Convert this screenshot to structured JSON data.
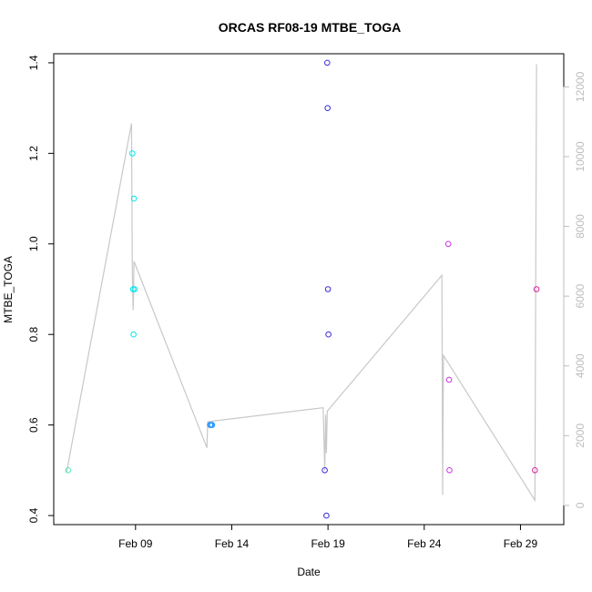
{
  "chart_data": {
    "type": "scatter",
    "title": "ORCAS RF08-19 MTBE_TOGA",
    "xlabel": "Date",
    "ylabel": "MTBE_TOGA",
    "x_ticks": [
      "Feb 09",
      "Feb 14",
      "Feb 19",
      "Feb 24",
      "Feb 29"
    ],
    "x_tick_dates": [
      "2016-02-09",
      "2016-02-14",
      "2016-02-19",
      "2016-02-24",
      "2016-02-29"
    ],
    "xlim": [
      "2016-02-04 18:00",
      "2016-03-02 06:00"
    ],
    "ylim": [
      0.38,
      1.42
    ],
    "y_ticks": [
      0.4,
      0.6,
      0.8,
      1.0,
      1.2,
      1.4
    ],
    "y_tick_labels": [
      "0.4",
      "0.6",
      "0.8",
      "1.0",
      "1.2",
      "1.4"
    ],
    "y2_ticks": [
      0,
      2000,
      4000,
      6000,
      8000,
      10000,
      12000
    ],
    "y2_tick_labels": [
      "0",
      "2000",
      "4000",
      "6000",
      "8000",
      "10000",
      "12000"
    ],
    "y2lim": [
      -550,
      12950
    ],
    "grid": false,
    "points": [
      {
        "x": "2016-02-05 12:00",
        "y": 0.5,
        "color": "#4de8b8"
      },
      {
        "x": "2016-02-08 20:00",
        "y": 1.2,
        "color": "#00e5ee"
      },
      {
        "x": "2016-02-08 21:00",
        "y": 0.9,
        "color": "#00e5ee"
      },
      {
        "x": "2016-02-08 21:30",
        "y": 0.8,
        "color": "#00e5ee"
      },
      {
        "x": "2016-02-08 22:00",
        "y": 1.1,
        "color": "#00e5ee"
      },
      {
        "x": "2016-02-08 23:00",
        "y": 0.9,
        "color": "#00e5ee"
      },
      {
        "x": "2016-02-12 21:00",
        "y": 0.6,
        "color": "#1e90ff"
      },
      {
        "x": "2016-02-12 22:00",
        "y": 0.6,
        "color": "#1e90ff"
      },
      {
        "x": "2016-02-12 23:30",
        "y": 0.6,
        "color": "#1e90ff"
      },
      {
        "x": "2016-02-18 20:00",
        "y": 0.5,
        "color": "#3a2cd8"
      },
      {
        "x": "2016-02-18 22:00",
        "y": 0.4,
        "color": "#3a2cd8"
      },
      {
        "x": "2016-02-18 23:00",
        "y": 1.4,
        "color": "#3a2cd8"
      },
      {
        "x": "2016-02-18 23:30",
        "y": 1.3,
        "color": "#3a2cd8"
      },
      {
        "x": "2016-02-19 00:00",
        "y": 0.9,
        "color": "#3a2cd8"
      },
      {
        "x": "2016-02-19 00:30",
        "y": 0.8,
        "color": "#3a2cd8"
      },
      {
        "x": "2016-02-25 06:00",
        "y": 1.0,
        "color": "#cc33e6"
      },
      {
        "x": "2016-02-25 07:00",
        "y": 0.7,
        "color": "#cc33e6"
      },
      {
        "x": "2016-02-25 07:30",
        "y": 0.5,
        "color": "#cc33e6"
      },
      {
        "x": "2016-02-29 18:00",
        "y": 0.5,
        "color": "#d6249c"
      },
      {
        "x": "2016-02-29 20:00",
        "y": 0.9,
        "color": "#d6249c"
      }
    ],
    "secondary_line": {
      "color": "#c8c8c8",
      "axis": "right",
      "points": [
        {
          "x": "2016-02-05 10:00",
          "y2": 950
        },
        {
          "x": "2016-02-08 19:00",
          "y2": 10950
        },
        {
          "x": "2016-02-08 20:00",
          "y2": 6700
        },
        {
          "x": "2016-02-08 21:00",
          "y2": 5600
        },
        {
          "x": "2016-02-08 21:30",
          "y2": 6000
        },
        {
          "x": "2016-02-08 22:00",
          "y2": 7000
        },
        {
          "x": "2016-02-12 17:00",
          "y2": 1650
        },
        {
          "x": "2016-02-12 18:00",
          "y2": 2400
        },
        {
          "x": "2016-02-18 18:00",
          "y2": 2800
        },
        {
          "x": "2016-02-18 20:00",
          "y2": 1000
        },
        {
          "x": "2016-02-18 21:00",
          "y2": 2600
        },
        {
          "x": "2016-02-18 22:00",
          "y2": 1500
        },
        {
          "x": "2016-02-18 23:00",
          "y2": 2700
        },
        {
          "x": "2016-02-24 22:00",
          "y2": 6600
        },
        {
          "x": "2016-02-24 23:00",
          "y2": 300
        },
        {
          "x": "2016-02-25 00:00",
          "y2": 4300
        },
        {
          "x": "2016-02-29 18:00",
          "y2": 150
        },
        {
          "x": "2016-02-29 20:00",
          "y2": 12650
        }
      ]
    }
  }
}
